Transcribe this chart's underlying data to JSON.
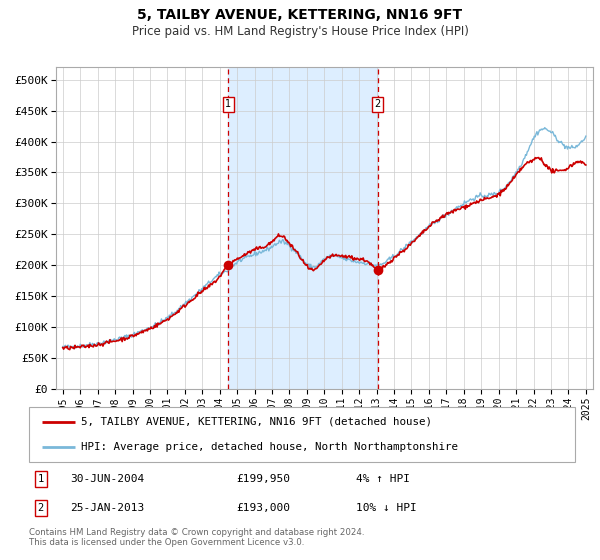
{
  "title": "5, TAILBY AVENUE, KETTERING, NN16 9FT",
  "subtitle": "Price paid vs. HM Land Registry's House Price Index (HPI)",
  "ylabel_ticks": [
    "£0",
    "£50K",
    "£100K",
    "£150K",
    "£200K",
    "£250K",
    "£300K",
    "£350K",
    "£400K",
    "£450K",
    "£500K"
  ],
  "ytick_values": [
    0,
    50000,
    100000,
    150000,
    200000,
    250000,
    300000,
    350000,
    400000,
    450000,
    500000
  ],
  "ylim": [
    0,
    520000
  ],
  "sale1_date_label": "30-JUN-2004",
  "sale1_price": 199950,
  "sale1_price_str": "£199,950",
  "sale1_hpi_diff": "4% ↑ HPI",
  "sale2_date_label": "25-JAN-2013",
  "sale2_price": 193000,
  "sale2_price_str": "£193,000",
  "sale2_hpi_diff": "10% ↓ HPI",
  "sale1_x": 2004.5,
  "sale2_x": 2013.07,
  "legend_line1": "5, TAILBY AVENUE, KETTERING, NN16 9FT (detached house)",
  "legend_line2": "HPI: Average price, detached house, North Northamptonshire",
  "footer": "Contains HM Land Registry data © Crown copyright and database right 2024.\nThis data is licensed under the Open Government Licence v3.0.",
  "hpi_color": "#7ab8d9",
  "price_color": "#cc0000",
  "bg_shade_color": "#ddeeff",
  "vline_color": "#cc0000",
  "grid_color": "#cccccc",
  "spine_color": "#aaaaaa"
}
